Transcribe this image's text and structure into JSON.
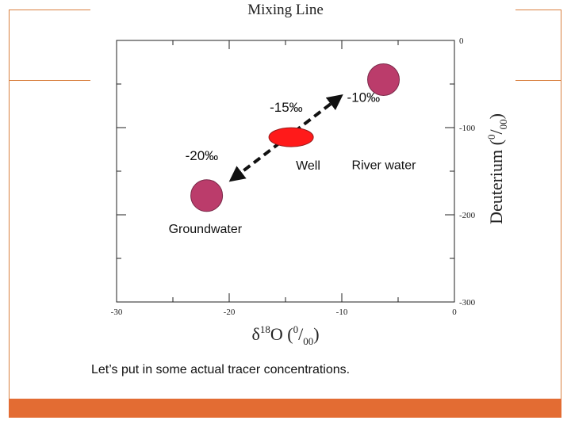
{
  "chart_data": {
    "type": "scatter",
    "title": "Mixing Line",
    "xlabel": "δ18O (0/00)",
    "xlabel_parts": {
      "base": "δ",
      "sup": "18",
      "main": "O (",
      "sup2": "0",
      "slash": "/",
      "sub": "00",
      "close": ")"
    },
    "ylabel": "Deuterium (0/00)",
    "ylabel_parts": {
      "main": "Deuterium (",
      "sup": "0",
      "slash": "/",
      "sub": "00",
      "close": ")"
    },
    "xlim": [
      -30,
      0
    ],
    "ylim": [
      -300,
      0
    ],
    "xticks": [
      -30,
      -20,
      -10,
      0
    ],
    "xtick_labels": [
      "-30",
      "-20",
      "-10",
      "0"
    ],
    "yticks": [
      0,
      -100,
      -200,
      -300
    ],
    "ytick_labels": [
      "0",
      "-100",
      "-200",
      "-300"
    ],
    "points": [
      {
        "name": "River water",
        "x": -6.3,
        "y": -45,
        "color": "#bb3c6b",
        "value_label": "-10‰"
      },
      {
        "name": "Well",
        "x": -14.5,
        "y": -111,
        "color": "#ff1a1a",
        "value_label": "-15‰"
      },
      {
        "name": "Groundwater",
        "x": -22,
        "y": -178,
        "color": "#bb3c6b",
        "value_label": "-20‰"
      }
    ],
    "mixing_line": {
      "from": [
        -10.1,
        -64
      ],
      "to": [
        -19.8,
        -160
      ],
      "style": "dashed",
      "arrows": "both"
    }
  },
  "caption": "Let’s put in some actual tracer concentrations."
}
